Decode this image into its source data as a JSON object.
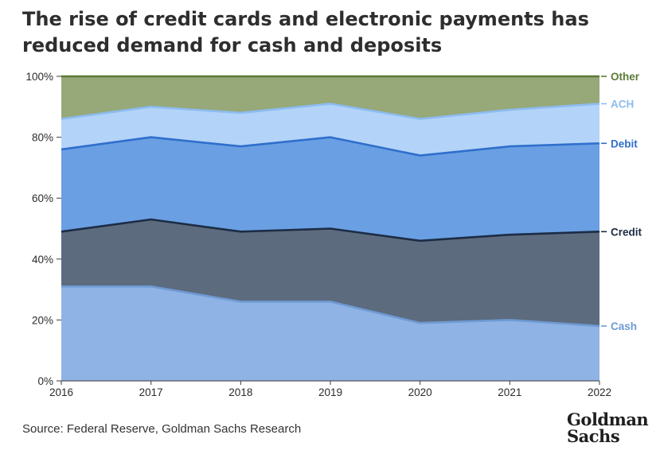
{
  "title": "The rise of credit cards and electronic payments has reduced demand for cash and deposits",
  "source": "Source: Federal Reserve, Goldman Sachs Research",
  "logo": {
    "line1": "Goldman",
    "line2": "Sachs"
  },
  "chart_data": {
    "type": "area",
    "stacked": true,
    "x": [
      "2016",
      "2017",
      "2018",
      "2019",
      "2020",
      "2021",
      "2022"
    ],
    "y_ticks": [
      "0%",
      "20%",
      "40%",
      "60%",
      "80%",
      "100%"
    ],
    "ylim": [
      0,
      100
    ],
    "grid": false,
    "legend": "right (labels at series ends)",
    "series": [
      {
        "name": "Cash",
        "values": [
          31,
          31,
          26,
          26,
          19,
          20,
          18
        ],
        "color": "#8fb3e4",
        "line": "#6f9ad4",
        "label_color": "#6f9ad4"
      },
      {
        "name": "Credit",
        "values": [
          18,
          22,
          23,
          24,
          27,
          28,
          31
        ],
        "color": "#5c6b7e",
        "line": "#1c2c45",
        "label_color": "#1c2c45"
      },
      {
        "name": "Debit",
        "values": [
          27,
          27,
          28,
          30,
          28,
          29,
          29
        ],
        "color": "#6a9fe3",
        "line": "#2f6fcc",
        "label_color": "#2f6fcc"
      },
      {
        "name": "ACH",
        "values": [
          10,
          10,
          11,
          11,
          12,
          12,
          13
        ],
        "color": "#b3d3f8",
        "line": "#8cbcf0",
        "label_color": "#8cbcf0"
      },
      {
        "name": "Other",
        "values": [
          14,
          10,
          12,
          9,
          14,
          11,
          9
        ],
        "color": "#97a879",
        "line": "#5b7a35",
        "label_color": "#5b7a35"
      }
    ]
  }
}
